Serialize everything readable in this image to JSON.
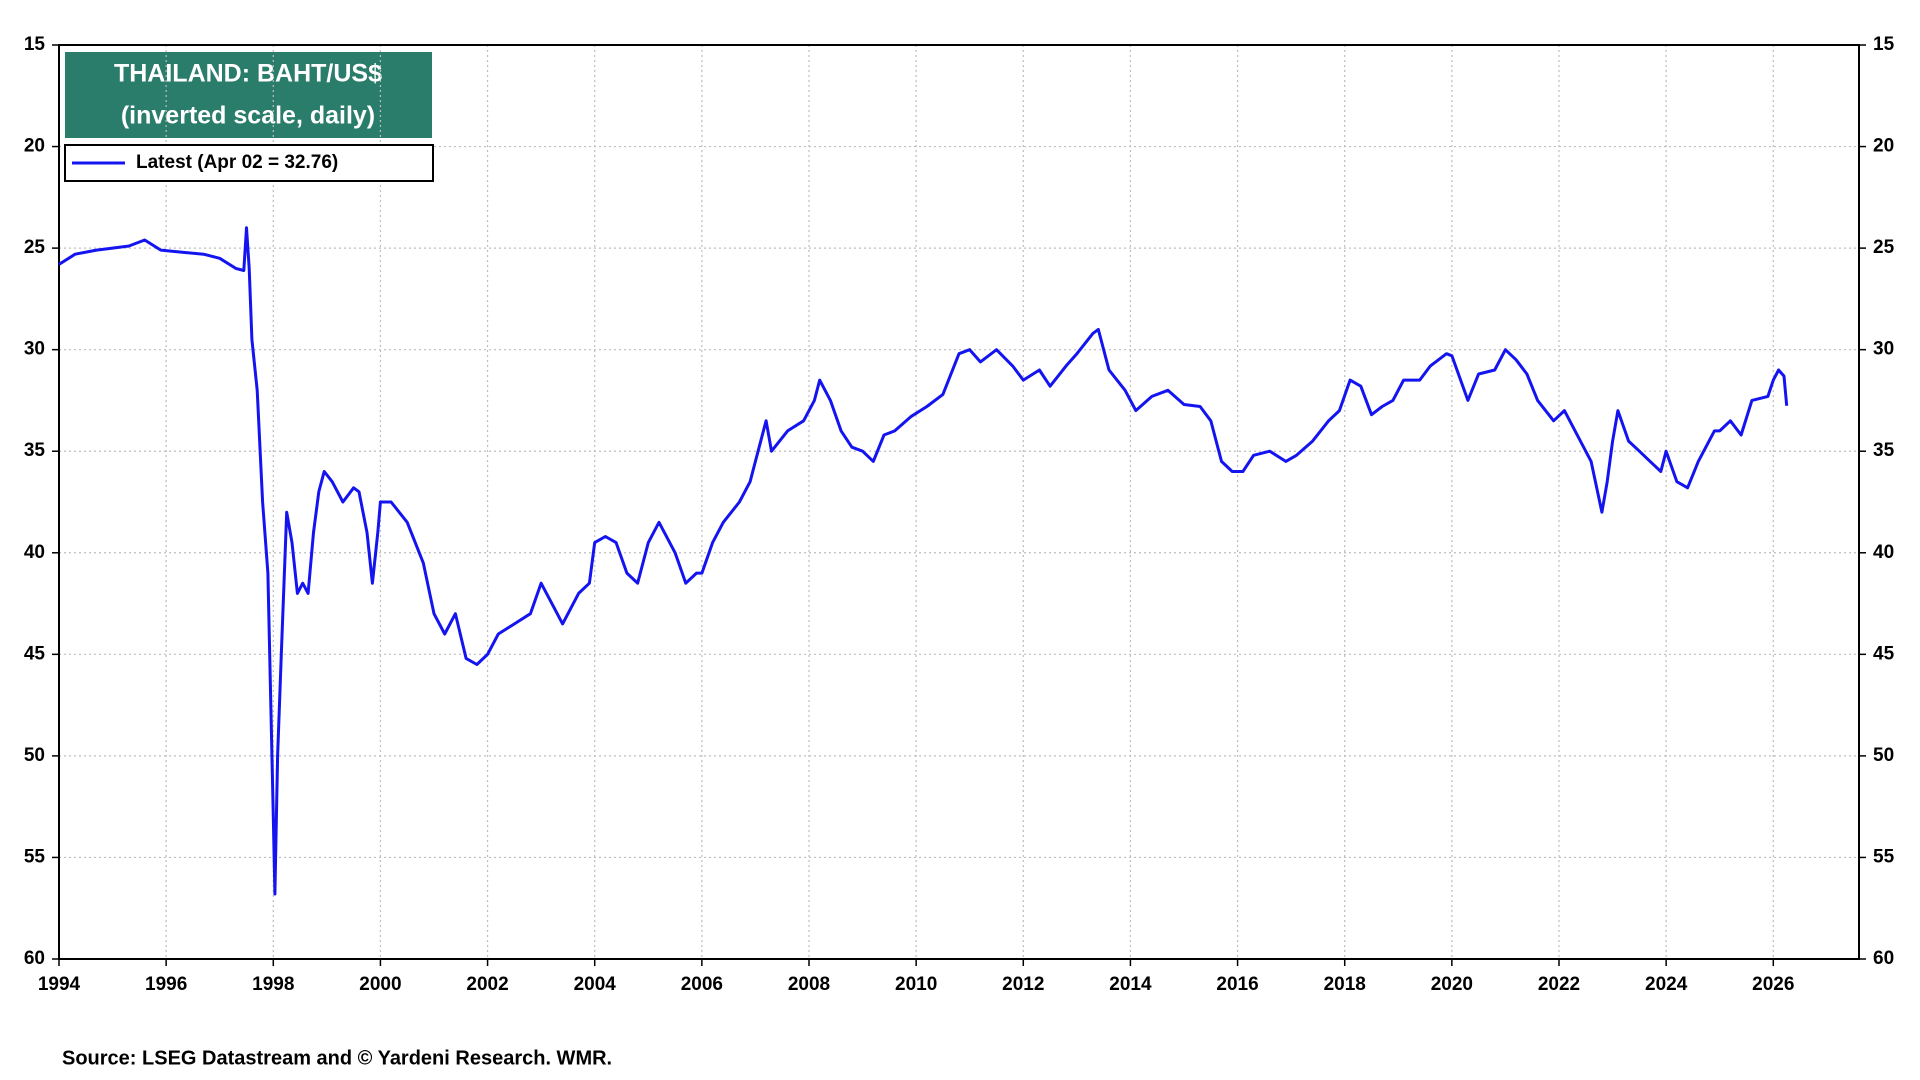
{
  "chart_data": {
    "type": "line",
    "title": "THAILAND: BAHT/US$",
    "subtitle": "(inverted scale, daily)",
    "source": "Source: LSEG Datastream and © Yardeni Research. WMR.",
    "x": [
      1994.0,
      1994.3,
      1994.7,
      1995.0,
      1995.3,
      1995.6,
      1995.9,
      1996.3,
      1996.7,
      1997.0,
      1997.3,
      1997.45,
      1997.5,
      1997.55,
      1997.6,
      1997.7,
      1997.8,
      1997.9,
      1997.95,
      1998.0,
      1998.03,
      1998.08,
      1998.15,
      1998.25,
      1998.35,
      1998.45,
      1998.55,
      1998.65,
      1998.75,
      1998.85,
      1998.95,
      1999.1,
      1999.3,
      1999.5,
      1999.6,
      1999.75,
      1999.85,
      1999.95,
      2000.0,
      2000.2,
      2000.5,
      2000.8,
      2001.0,
      2001.2,
      2001.4,
      2001.6,
      2001.8,
      2002.0,
      2002.2,
      2002.5,
      2002.8,
      2003.0,
      2003.2,
      2003.4,
      2003.7,
      2003.9,
      2004.0,
      2004.2,
      2004.4,
      2004.6,
      2004.8,
      2005.0,
      2005.2,
      2005.5,
      2005.7,
      2005.9,
      2006.0,
      2006.2,
      2006.4,
      2006.7,
      2006.9,
      2007.0,
      2007.2,
      2007.3,
      2007.6,
      2007.9,
      2008.1,
      2008.2,
      2008.4,
      2008.6,
      2008.8,
      2009.0,
      2009.2,
      2009.4,
      2009.6,
      2009.9,
      2010.2,
      2010.5,
      2010.8,
      2011.0,
      2011.2,
      2011.5,
      2011.8,
      2012.0,
      2012.3,
      2012.5,
      2012.8,
      2013.0,
      2013.3,
      2013.4,
      2013.6,
      2013.9,
      2014.1,
      2014.4,
      2014.7,
      2015.0,
      2015.3,
      2015.5,
      2015.7,
      2015.9,
      2016.1,
      2016.3,
      2016.6,
      2016.9,
      2017.1,
      2017.4,
      2017.7,
      2017.9,
      2018.1,
      2018.3,
      2018.5,
      2018.7,
      2018.9,
      2019.1,
      2019.4,
      2019.6,
      2019.9,
      2020.0,
      2020.3,
      2020.5,
      2020.8,
      2021.0,
      2021.2,
      2021.4,
      2021.6,
      2021.9,
      2022.1,
      2022.3,
      2022.6,
      2022.8,
      2022.9,
      2023.0,
      2023.1,
      2023.3,
      2023.5,
      2023.7,
      2023.9,
      2024.0,
      2024.2,
      2024.4,
      2024.6,
      2024.9,
      2025.0,
      2025.2,
      2025.4,
      2025.6,
      2025.9,
      2026.0,
      2026.1,
      2026.2,
      2026.25
    ],
    "series": [
      {
        "name": "Latest (Apr 02 = 32.76)",
        "color": "#1414f0",
        "values": [
          25.8,
          25.3,
          25.1,
          25.0,
          24.9,
          24.6,
          25.1,
          25.2,
          25.3,
          25.5,
          26.0,
          26.1,
          24.0,
          26.0,
          29.5,
          32.0,
          37.5,
          41.0,
          47.0,
          53.0,
          56.8,
          50.0,
          45.0,
          38.0,
          39.5,
          42.0,
          41.5,
          42.0,
          39.0,
          37.0,
          36.0,
          36.5,
          37.5,
          36.8,
          37.0,
          39.0,
          41.5,
          39.0,
          37.5,
          37.5,
          38.5,
          40.5,
          43.0,
          44.0,
          43.0,
          45.2,
          45.5,
          45.0,
          44.0,
          43.5,
          43.0,
          41.5,
          42.5,
          43.5,
          42.0,
          41.5,
          39.5,
          39.2,
          39.5,
          41.0,
          41.5,
          39.5,
          38.5,
          40.0,
          41.5,
          41.0,
          41.0,
          39.5,
          38.5,
          37.5,
          36.5,
          35.5,
          33.5,
          35.0,
          34.0,
          33.5,
          32.5,
          31.5,
          32.5,
          34.0,
          34.8,
          35.0,
          35.5,
          34.2,
          34.0,
          33.3,
          32.8,
          32.2,
          30.2,
          30.0,
          30.6,
          30.0,
          30.8,
          31.5,
          31.0,
          31.8,
          30.8,
          30.2,
          29.2,
          29.0,
          31.0,
          32.0,
          33.0,
          32.3,
          32.0,
          32.7,
          32.8,
          33.5,
          35.5,
          36.0,
          36.0,
          35.2,
          35.0,
          35.5,
          35.2,
          34.5,
          33.5,
          33.0,
          31.5,
          31.8,
          33.2,
          32.8,
          32.5,
          31.5,
          31.5,
          30.8,
          30.2,
          30.3,
          32.5,
          31.2,
          31.0,
          30.0,
          30.5,
          31.2,
          32.5,
          33.5,
          33.0,
          34.0,
          35.5,
          38.0,
          36.5,
          34.5,
          33.0,
          34.5,
          35.0,
          35.5,
          36.0,
          35.0,
          36.5,
          36.8,
          35.5,
          34.0,
          34.0,
          33.5,
          34.2,
          32.5,
          32.3,
          31.5,
          31.0,
          31.3,
          32.76
        ]
      }
    ],
    "xlim": [
      1994,
      2027.6
    ],
    "xticks": [
      1994,
      1996,
      1998,
      2000,
      2002,
      2004,
      2006,
      2008,
      2010,
      2012,
      2014,
      2016,
      2018,
      2020,
      2022,
      2024,
      2026
    ],
    "ylim": [
      15,
      60
    ],
    "yticks": [
      15,
      20,
      25,
      30,
      35,
      40,
      45,
      50,
      55,
      60
    ],
    "y2lim": [
      15,
      60
    ],
    "y2ticks": [
      15,
      20,
      25,
      30,
      35,
      40,
      45,
      50,
      55,
      60
    ],
    "inverted": true,
    "grid": true,
    "title_color": "#2a7d6b"
  }
}
